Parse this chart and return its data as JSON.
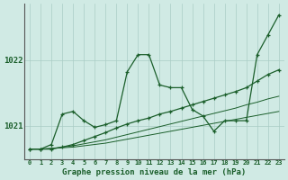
{
  "title": "Graphe pression niveau de la mer (hPa)",
  "background_color": "#d0eae4",
  "grid_color": "#aaccc5",
  "line_color": "#1a5e2a",
  "x_labels": [
    "0",
    "1",
    "2",
    "3",
    "4",
    "5",
    "6",
    "7",
    "8",
    "9",
    "10",
    "11",
    "12",
    "13",
    "14",
    "15",
    "16",
    "17",
    "18",
    "19",
    "20",
    "21",
    "22",
    "23"
  ],
  "ylim": [
    1020.5,
    1022.85
  ],
  "yticks": [
    1021,
    1022
  ],
  "series1_jagged": [
    1020.65,
    1020.65,
    1020.72,
    1021.18,
    1021.22,
    1021.08,
    1020.98,
    1021.02,
    1021.08,
    1021.82,
    1022.08,
    1022.08,
    1021.62,
    1021.58,
    1021.58,
    1021.25,
    1021.15,
    1020.92,
    1021.08,
    1021.08,
    1021.08,
    1022.08,
    1022.38,
    1022.68
  ],
  "series2_smooth": [
    1020.65,
    1020.65,
    1020.65,
    1020.68,
    1020.72,
    1020.78,
    1020.84,
    1020.9,
    1020.97,
    1021.03,
    1021.08,
    1021.12,
    1021.18,
    1021.22,
    1021.27,
    1021.32,
    1021.37,
    1021.42,
    1021.47,
    1021.52,
    1021.58,
    1021.68,
    1021.78,
    1021.85
  ],
  "series3_line": [
    1020.65,
    1020.65,
    1020.66,
    1020.68,
    1020.7,
    1020.73,
    1020.76,
    1020.79,
    1020.83,
    1020.87,
    1020.91,
    1020.95,
    1020.99,
    1021.03,
    1021.07,
    1021.11,
    1021.15,
    1021.19,
    1021.23,
    1021.27,
    1021.32,
    1021.36,
    1021.41,
    1021.45
  ],
  "series4_line": [
    1020.65,
    1020.65,
    1020.66,
    1020.67,
    1020.68,
    1020.7,
    1020.72,
    1020.74,
    1020.77,
    1020.8,
    1020.83,
    1020.86,
    1020.89,
    1020.92,
    1020.95,
    1020.98,
    1021.01,
    1021.04,
    1021.07,
    1021.1,
    1021.13,
    1021.16,
    1021.19,
    1021.22
  ]
}
